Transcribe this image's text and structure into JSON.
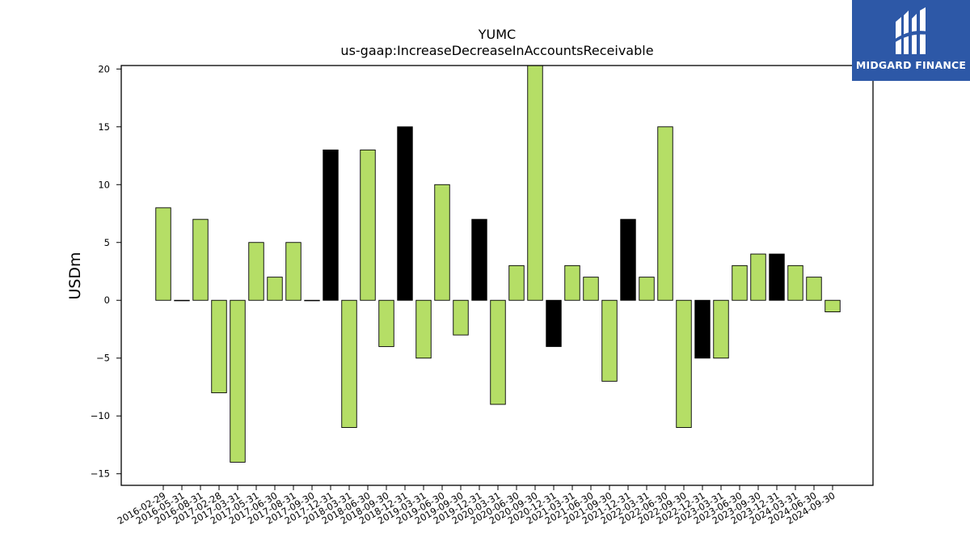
{
  "chart_data": {
    "type": "bar",
    "title": "YUMC",
    "subtitle": "us-gaap:IncreaseDecreaseInAccountsReceivable",
    "ylabel": "USDm",
    "xlabel": "",
    "ylim": [
      -16,
      20.3
    ],
    "yticks": [
      -15,
      -10,
      -5,
      0,
      5,
      10,
      15,
      20
    ],
    "grid": false,
    "colors": {
      "positive_bar": "#b5de66",
      "highlight_bar": "#000000",
      "edge": "#000000"
    },
    "categories": [
      "2016-02-29",
      "2016-05-31",
      "2016-08-31",
      "2017-02-28",
      "2017-03-31",
      "2017-05-31",
      "2017-06-30",
      "2017-08-31",
      "2017-09-30",
      "2017-12-31",
      "2018-03-31",
      "2018-06-30",
      "2018-09-30",
      "2018-12-31",
      "2019-03-31",
      "2019-06-30",
      "2019-09-30",
      "2019-12-31",
      "2020-03-31",
      "2020-06-30",
      "2020-09-30",
      "2020-12-31",
      "2021-03-31",
      "2021-06-30",
      "2021-09-30",
      "2021-12-31",
      "2022-03-31",
      "2022-06-30",
      "2022-09-30",
      "2022-12-31",
      "2023-03-31",
      "2023-06-30",
      "2023-09-30",
      "2023-12-31",
      "2024-03-31",
      "2024-06-30",
      "2024-09-30"
    ],
    "values": [
      8,
      0,
      7,
      -8,
      -14,
      5,
      2,
      5,
      0,
      13,
      -11,
      13,
      -4,
      15,
      -5,
      10,
      -3,
      7,
      -9,
      3,
      21,
      -4,
      3,
      2,
      -7,
      7,
      2,
      15,
      -11,
      -5,
      -5,
      3,
      4,
      4,
      3,
      2,
      -1
    ],
    "highlighted": [
      false,
      false,
      false,
      false,
      false,
      false,
      false,
      false,
      false,
      true,
      false,
      false,
      false,
      true,
      false,
      false,
      false,
      true,
      false,
      false,
      false,
      true,
      false,
      false,
      false,
      true,
      false,
      false,
      false,
      true,
      false,
      false,
      false,
      true,
      false,
      false,
      false
    ]
  },
  "logo": {
    "text": "MIDGARD FINANCE",
    "background": "#2d58a7"
  }
}
